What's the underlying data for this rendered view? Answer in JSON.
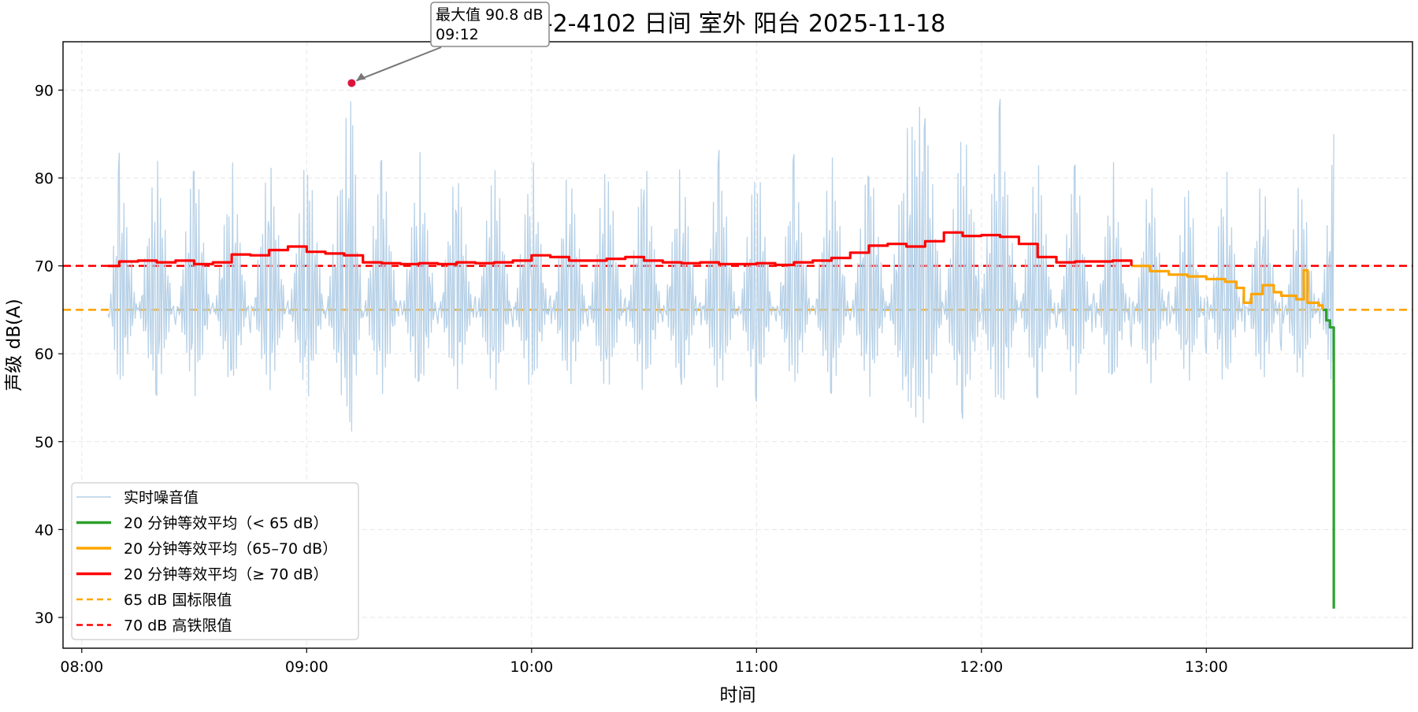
{
  "chart_data": {
    "type": "line",
    "title": "1-2-4102 日间 室外 阳台 2025-11-18",
    "xlabel": "时间",
    "ylabel": "声级 dB(A)",
    "x_ticks": [
      "08:00",
      "09:00",
      "10:00",
      "11:00",
      "12:00",
      "13:00"
    ],
    "y_ticks": [
      30,
      40,
      50,
      60,
      70,
      80,
      90
    ],
    "xlim": [
      "07:55",
      "13:55"
    ],
    "ylim": [
      26.5,
      95.5
    ],
    "grid": true,
    "legend_position": "bottom-left",
    "series": [
      {
        "name": "实时噪音值",
        "color": "#b3cfe6",
        "kind": "raw",
        "x": [
          "08:07",
          "08:10",
          "08:15",
          "08:20",
          "08:25",
          "08:30",
          "08:35",
          "08:40",
          "08:45",
          "08:50",
          "08:55",
          "09:00",
          "09:05",
          "09:10",
          "09:12",
          "09:15",
          "09:20",
          "09:25",
          "09:30",
          "09:35",
          "09:40",
          "09:45",
          "09:50",
          "09:55",
          "10:00",
          "10:05",
          "10:10",
          "10:15",
          "10:20",
          "10:25",
          "10:30",
          "10:35",
          "10:40",
          "10:45",
          "10:50",
          "10:55",
          "11:00",
          "11:05",
          "11:10",
          "11:15",
          "11:20",
          "11:25",
          "11:30",
          "11:35",
          "11:40",
          "11:45",
          "11:50",
          "11:55",
          "12:00",
          "12:05",
          "12:10",
          "12:15",
          "12:20",
          "12:25",
          "12:30",
          "12:35",
          "12:40",
          "12:45",
          "12:50",
          "12:55",
          "13:00",
          "13:05",
          "13:10",
          "13:15",
          "13:20",
          "13:25",
          "13:30",
          "13:34"
        ],
        "y": [
          62,
          83,
          64,
          84,
          62,
          84,
          63,
          83,
          62,
          84,
          63,
          85,
          64,
          86,
          90.8,
          63,
          84,
          62,
          84,
          63,
          83,
          62,
          84,
          63,
          84,
          62,
          83,
          63,
          84,
          62,
          84,
          63,
          83,
          62,
          84,
          63,
          84,
          62,
          83,
          63,
          84,
          63,
          84,
          64,
          86,
          89,
          65,
          88,
          67,
          89,
          64,
          84,
          61,
          84,
          60,
          83,
          60,
          82,
          61,
          82,
          60,
          83,
          61,
          82,
          60,
          82,
          62,
          85
        ]
      },
      {
        "name": "20 分钟等效平均（< 65 dB）",
        "color": "#2ca02c",
        "kind": "leq",
        "x": [
          "13:31",
          "13:32",
          "13:33",
          "13:33",
          "13:34"
        ],
        "y": [
          65,
          63.8,
          63.5,
          63,
          31
        ]
      },
      {
        "name": "20 分钟等效平均（65–70 dB）",
        "color": "#ffa500",
        "kind": "leq",
        "x": [
          "12:40",
          "12:45",
          "12:50",
          "12:55",
          "13:00",
          "13:05",
          "13:08",
          "13:10",
          "13:12",
          "13:15",
          "13:18",
          "13:20",
          "13:24",
          "13:26",
          "13:27",
          "13:30",
          "13:31"
        ],
        "y": [
          70,
          69.4,
          69,
          68.8,
          68.5,
          68.2,
          67.5,
          65.8,
          66.8,
          67.8,
          67,
          66.6,
          66.2,
          69.5,
          65.8,
          65.5,
          65
        ]
      },
      {
        "name": "20 分钟等效平均（≥ 70 dB）",
        "color": "#ff0000",
        "kind": "leq",
        "x": [
          "08:07",
          "08:10",
          "08:15",
          "08:20",
          "08:25",
          "08:30",
          "08:35",
          "08:40",
          "08:45",
          "08:50",
          "08:55",
          "09:00",
          "09:05",
          "09:10",
          "09:15",
          "09:20",
          "09:25",
          "09:30",
          "09:35",
          "09:40",
          "09:45",
          "09:50",
          "09:55",
          "10:00",
          "10:05",
          "10:10",
          "10:15",
          "10:20",
          "10:25",
          "10:30",
          "10:35",
          "10:40",
          "10:45",
          "10:50",
          "10:55",
          "11:00",
          "11:05",
          "11:10",
          "11:15",
          "11:20",
          "11:25",
          "11:30",
          "11:35",
          "11:40",
          "11:45",
          "11:50",
          "11:55",
          "12:00",
          "12:05",
          "12:10",
          "12:15",
          "12:20",
          "12:25",
          "12:30",
          "12:35",
          "12:40"
        ],
        "y": [
          70,
          70.5,
          70.6,
          70.4,
          70.6,
          70.2,
          70.4,
          71.3,
          71.2,
          71.8,
          72.2,
          71.6,
          71.4,
          71.2,
          70.4,
          70.3,
          70.2,
          70.3,
          70.2,
          70.4,
          70.3,
          70.4,
          70.6,
          71.2,
          71,
          70.6,
          70.6,
          70.8,
          71,
          70.6,
          70.4,
          70.3,
          70.4,
          70.2,
          70.2,
          70.3,
          70.1,
          70.4,
          70.6,
          70.9,
          71.5,
          72.3,
          72.5,
          72.2,
          72.8,
          73.8,
          73.4,
          73.5,
          73.3,
          72.5,
          71,
          70.4,
          70.5,
          70.5,
          70.6,
          70
        ]
      },
      {
        "name": "65 dB 国标限值",
        "color": "#ffa500",
        "kind": "hline",
        "y": 65
      },
      {
        "name": "70 dB 高铁限值",
        "color": "#ff0000",
        "kind": "hline",
        "y": 70
      }
    ],
    "annotation": {
      "text_line1": "最大值 90.8 dB",
      "text_line2": "09:12",
      "x": "09:12",
      "y": 90.8,
      "point_color": "#dc143c"
    }
  }
}
